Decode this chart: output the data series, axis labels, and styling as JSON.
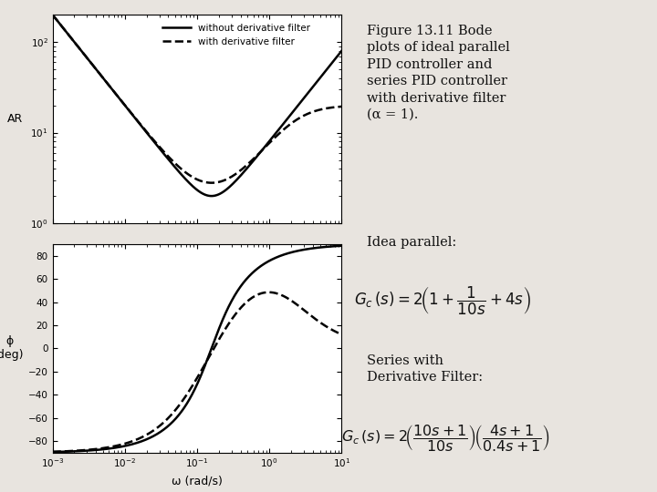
{
  "omega_min": 0.001,
  "omega_max": 10,
  "Kc": 2,
  "tau_I": 10,
  "tau_D": 4,
  "alpha": 1,
  "AR_ylim": [
    1.0,
    200
  ],
  "phase_ylim": [
    -90,
    90
  ],
  "phase_yticks": [
    -80,
    -60,
    -40,
    -20,
    0,
    20,
    40,
    60,
    80
  ],
  "legend_solid": "without derivative filter",
  "legend_dashed": "with derivative filter",
  "ylabel_AR": "AR",
  "ylabel_phase": "ϕ\n(deg)",
  "xlabel": "ω (rad/s)",
  "fig_title": "Figure 13.11 Bode\nplots of ideal parallel\nPID controller and\nseries PID controller\nwith derivative filter\n(α = 1).",
  "label_ideal": "Idea parallel:",
  "label_series": "Series with\nDerivative Filter:",
  "bg_color": "#e8e4df",
  "plot_bg_color": "#ffffff",
  "text_color": "#111111"
}
